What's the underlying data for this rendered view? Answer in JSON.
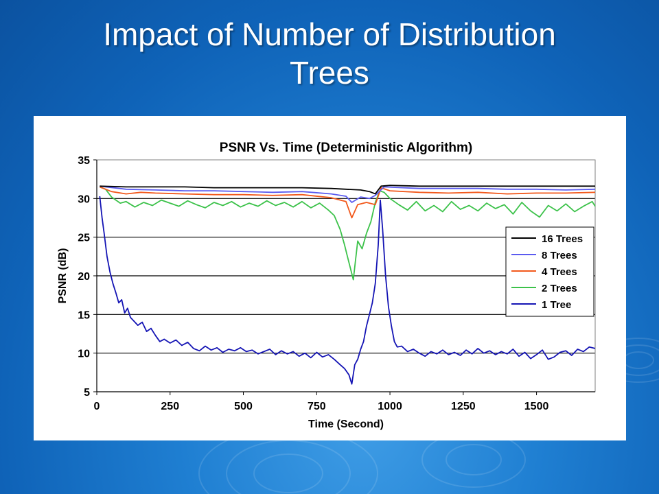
{
  "slide": {
    "title_line1": "Impact of Number of Distribution",
    "title_line2": "Trees"
  },
  "colors": {
    "background": "#1f7fd2",
    "title_text": "#ffffff",
    "16_trees": "#000000",
    "8_trees": "#5b5bf0",
    "4_trees": "#f2581b",
    "2_trees": "#3cc24a",
    "1_tree": "#1414b4"
  },
  "chart_data": {
    "type": "line",
    "title": "PSNR Vs. Time (Deterministic Algorithm)",
    "xlabel": "Time (Second)",
    "ylabel": "PSNR (dB)",
    "xlim": [
      0,
      1700
    ],
    "ylim": [
      5,
      35
    ],
    "xticks": [
      0,
      250,
      500,
      750,
      1000,
      1250,
      1500
    ],
    "yticks": [
      5,
      10,
      15,
      20,
      25,
      30,
      35
    ],
    "grid": "horizontal",
    "legend_position": "right",
    "series": [
      {
        "name": "16 Trees",
        "color": "#000000",
        "x": [
          10,
          100,
          200,
          300,
          400,
          500,
          600,
          700,
          800,
          850,
          900,
          930,
          950,
          970,
          1000,
          1100,
          1200,
          1300,
          1400,
          1500,
          1600,
          1700
        ],
        "y": [
          31.6,
          31.5,
          31.5,
          31.5,
          31.4,
          31.4,
          31.4,
          31.4,
          31.3,
          31.2,
          31.1,
          30.9,
          30.6,
          31.6,
          31.7,
          31.6,
          31.6,
          31.6,
          31.6,
          31.6,
          31.6,
          31.6
        ]
      },
      {
        "name": "8 Trees",
        "color": "#5b5bf0",
        "x": [
          10,
          100,
          200,
          300,
          400,
          500,
          600,
          700,
          800,
          850,
          870,
          900,
          930,
          950,
          980,
          1100,
          1200,
          1300,
          1400,
          1500,
          1600,
          1700
        ],
        "y": [
          31.6,
          31.2,
          31.1,
          31.0,
          31.0,
          30.9,
          30.8,
          30.9,
          30.6,
          30.3,
          29.5,
          30.2,
          30.0,
          30.4,
          31.5,
          31.3,
          31.3,
          31.3,
          31.2,
          31.2,
          31.1,
          31.2
        ]
      },
      {
        "name": "4 Trees",
        "color": "#f2581b",
        "x": [
          10,
          50,
          100,
          150,
          200,
          300,
          400,
          500,
          600,
          700,
          800,
          850,
          870,
          890,
          920,
          950,
          970,
          1000,
          1100,
          1200,
          1300,
          1400,
          1500,
          1600,
          1700
        ],
        "y": [
          31.5,
          30.9,
          30.6,
          30.8,
          30.7,
          30.6,
          30.5,
          30.5,
          30.4,
          30.5,
          30.1,
          29.6,
          27.5,
          29.2,
          29.5,
          29.2,
          31.4,
          31.0,
          30.8,
          30.7,
          30.8,
          30.6,
          30.7,
          30.7,
          30.8
        ]
      },
      {
        "name": "2 Trees",
        "color": "#3cc24a",
        "x": [
          10,
          30,
          50,
          80,
          100,
          130,
          160,
          190,
          220,
          250,
          280,
          310,
          340,
          370,
          400,
          430,
          460,
          490,
          520,
          550,
          580,
          610,
          640,
          670,
          700,
          730,
          760,
          790,
          810,
          830,
          845,
          855,
          865,
          875,
          890,
          905,
          920,
          935,
          950,
          965,
          980,
          1000,
          1030,
          1060,
          1090,
          1120,
          1150,
          1180,
          1210,
          1240,
          1270,
          1300,
          1330,
          1360,
          1390,
          1420,
          1450,
          1480,
          1510,
          1540,
          1570,
          1600,
          1630,
          1660,
          1690,
          1700
        ],
        "y": [
          31.5,
          31.2,
          30.2,
          29.4,
          29.6,
          28.9,
          29.5,
          29.1,
          29.8,
          29.4,
          29.0,
          29.7,
          29.2,
          28.8,
          29.5,
          29.1,
          29.6,
          28.9,
          29.4,
          29.0,
          29.7,
          29.1,
          29.5,
          28.9,
          29.6,
          28.8,
          29.4,
          28.5,
          27.8,
          26.0,
          24.0,
          22.5,
          21.0,
          19.5,
          24.5,
          23.5,
          25.5,
          27.0,
          29.5,
          31.0,
          30.8,
          30.0,
          29.2,
          28.5,
          29.6,
          28.4,
          29.1,
          28.3,
          29.6,
          28.6,
          29.1,
          28.4,
          29.4,
          28.7,
          29.2,
          28.0,
          29.5,
          28.4,
          27.6,
          29.1,
          28.4,
          29.3,
          28.3,
          29.0,
          29.6,
          29.0
        ]
      },
      {
        "name": "1 Tree",
        "color": "#1414b4",
        "x": [
          10,
          18,
          25,
          35,
          45,
          55,
          65,
          75,
          85,
          95,
          105,
          115,
          125,
          140,
          155,
          170,
          185,
          200,
          215,
          230,
          250,
          270,
          290,
          310,
          330,
          350,
          370,
          390,
          410,
          430,
          450,
          470,
          490,
          510,
          530,
          550,
          570,
          590,
          610,
          630,
          650,
          670,
          690,
          710,
          730,
          750,
          770,
          790,
          810,
          830,
          845,
          860,
          870,
          880,
          890,
          900,
          910,
          920,
          930,
          940,
          950,
          960,
          967,
          975,
          985,
          995,
          1005,
          1015,
          1025,
          1040,
          1060,
          1080,
          1100,
          1120,
          1140,
          1160,
          1180,
          1200,
          1220,
          1240,
          1260,
          1280,
          1300,
          1320,
          1340,
          1360,
          1380,
          1400,
          1420,
          1440,
          1460,
          1480,
          1500,
          1520,
          1540,
          1560,
          1580,
          1600,
          1620,
          1640,
          1660,
          1680,
          1700
        ],
        "y": [
          30.3,
          27.5,
          25.5,
          22.5,
          20.5,
          19.0,
          17.8,
          16.5,
          16.9,
          15.2,
          15.8,
          14.6,
          14.2,
          13.6,
          14.0,
          12.8,
          13.2,
          12.3,
          11.5,
          11.8,
          11.3,
          11.7,
          11.0,
          11.4,
          10.6,
          10.3,
          10.9,
          10.4,
          10.7,
          10.1,
          10.5,
          10.3,
          10.7,
          10.2,
          10.4,
          9.9,
          10.2,
          10.5,
          9.8,
          10.3,
          9.9,
          10.2,
          9.6,
          10.0,
          9.4,
          10.1,
          9.5,
          9.8,
          9.2,
          8.5,
          8.0,
          7.2,
          6.0,
          8.5,
          9.2,
          10.5,
          11.5,
          13.5,
          15.0,
          16.5,
          19.0,
          24.0,
          29.8,
          26.0,
          20.0,
          16.0,
          13.5,
          11.5,
          10.8,
          10.9,
          10.2,
          10.5,
          10.0,
          9.6,
          10.2,
          9.9,
          10.4,
          9.8,
          10.1,
          9.7,
          10.4,
          9.9,
          10.6,
          10.0,
          10.3,
          9.8,
          10.2,
          9.9,
          10.5,
          9.6,
          10.1,
          9.3,
          9.8,
          10.4,
          9.2,
          9.5,
          10.1,
          10.3,
          9.7,
          10.5,
          10.2,
          10.8,
          10.6
        ]
      }
    ]
  }
}
